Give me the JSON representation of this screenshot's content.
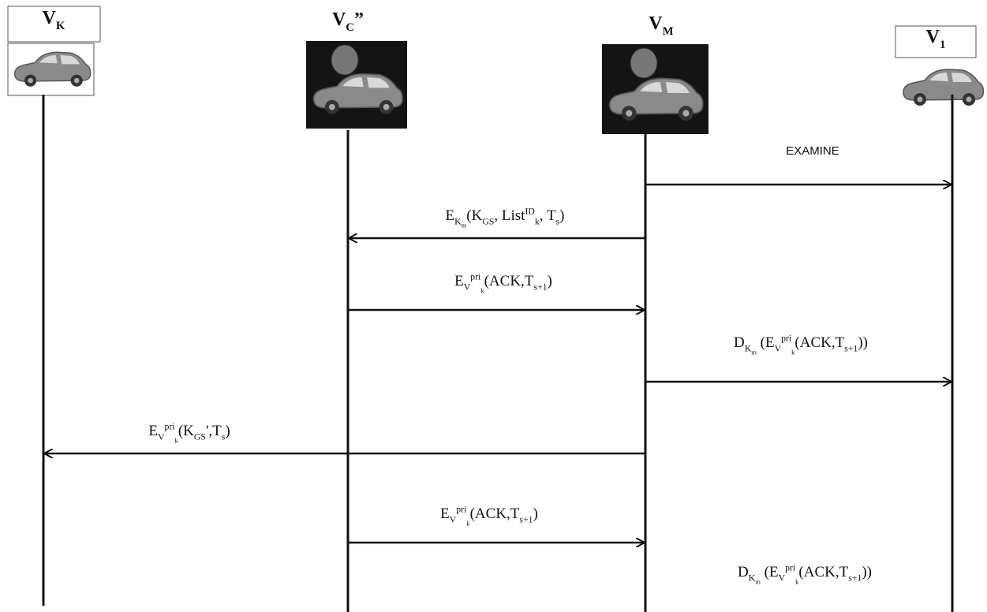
{
  "participants": [
    {
      "name": [
        {
          "text": "V"
        },
        {
          "sub": "K"
        }
      ]
    },
    {
      "name": [
        {
          "text": "V"
        },
        {
          "sub": "C"
        },
        {
          "text": "”"
        }
      ]
    },
    {
      "name": [
        {
          "text": "V"
        },
        {
          "sub": "M"
        }
      ]
    },
    {
      "name": [
        {
          "text": "V"
        },
        {
          "sub": "1"
        }
      ]
    }
  ],
  "messages": [
    {
      "from": 2,
      "to": 3,
      "label": [
        {
          "text": "EXAMINE"
        }
      ]
    },
    {
      "from": 2,
      "to": 1,
      "label": [
        {
          "text": "E"
        },
        {
          "sub": "K"
        },
        {
          "subsub": "m"
        },
        {
          "text": "(K"
        },
        {
          "sub": "GS"
        },
        {
          "text": ", List"
        },
        {
          "sup": "ID"
        },
        {
          "sub": "k"
        },
        {
          "text": ", T"
        },
        {
          "sub": "s"
        },
        {
          "text": ")"
        }
      ]
    },
    {
      "from": 1,
      "to": 2,
      "label": [
        {
          "text": "E"
        },
        {
          "sub": "V"
        },
        {
          "sup": "pri"
        },
        {
          "subsub": "k"
        },
        {
          "text": "(ACK,T"
        },
        {
          "sub": "s+1"
        },
        {
          "text": ")"
        }
      ]
    },
    {
      "from": 2,
      "to": 3,
      "label": [
        {
          "text": "D"
        },
        {
          "sub": "K"
        },
        {
          "subsub": "m"
        },
        {
          "text": " (E"
        },
        {
          "sub": "V"
        },
        {
          "sup": "pri"
        },
        {
          "subsub": "k"
        },
        {
          "text": "(ACK,T"
        },
        {
          "sub": "s+1"
        },
        {
          "text": "))"
        }
      ]
    },
    {
      "from": 2,
      "to": 0,
      "label": [
        {
          "text": "E"
        },
        {
          "sub": "V"
        },
        {
          "sup": "pri"
        },
        {
          "subsub": "k"
        },
        {
          "text": "(K"
        },
        {
          "sub": "GS"
        },
        {
          "text": "',T"
        },
        {
          "sub": "s"
        },
        {
          "text": ")"
        }
      ]
    },
    {
      "from": 1,
      "to": 2,
      "label": [
        {
          "text": "E"
        },
        {
          "sub": "V"
        },
        {
          "sup": "pri"
        },
        {
          "subsub": "k"
        },
        {
          "text": "(ACK,T"
        },
        {
          "sub": "s+1"
        },
        {
          "text": ")"
        }
      ]
    },
    {
      "label": [
        {
          "text": "D"
        },
        {
          "sub": "K"
        },
        {
          "subsub": "m"
        },
        {
          "text": " (E"
        },
        {
          "sub": "V"
        },
        {
          "sup": "pri"
        },
        {
          "subsub": "k"
        },
        {
          "text": "(ACK,T"
        },
        {
          "sub": "s+1"
        },
        {
          "text": "))"
        }
      ]
    }
  ]
}
